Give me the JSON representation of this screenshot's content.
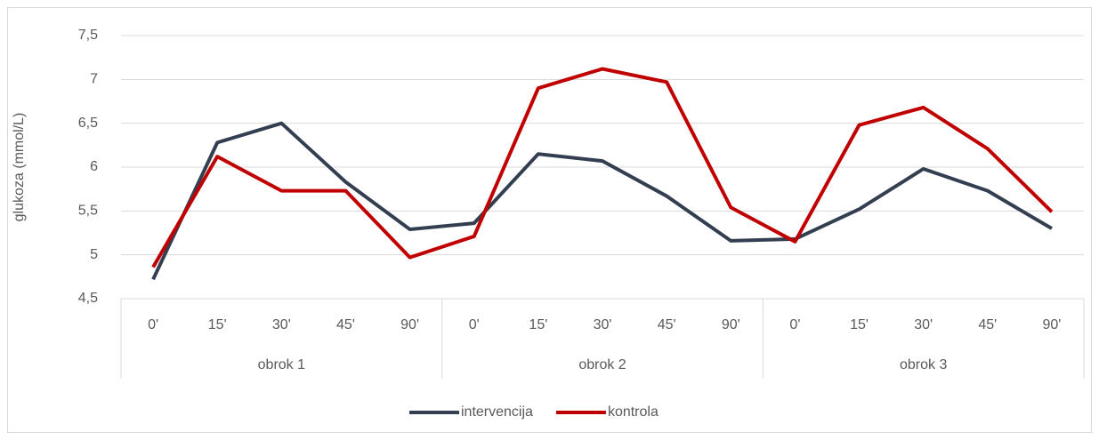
{
  "chart_data": {
    "type": "line",
    "y_label": "glukoza (mmol/L)",
    "categories": [
      "0'",
      "15'",
      "30'",
      "45'",
      "90'",
      "0'",
      "15'",
      "30'",
      "45'",
      "90'",
      "0'",
      "15'",
      "30'",
      "45'",
      "90'"
    ],
    "groups": [
      "obrok 1",
      "obrok 2",
      "obrok 3"
    ],
    "series": [
      {
        "name": "intervencija",
        "color": "#333f50",
        "values": [
          4.72,
          6.28,
          6.5,
          5.83,
          5.29,
          5.36,
          6.15,
          6.07,
          5.67,
          5.16,
          5.18,
          5.52,
          5.98,
          5.73,
          5.3
        ]
      },
      {
        "name": "kontrola",
        "color": "#c00000",
        "values": [
          4.86,
          6.12,
          5.73,
          5.73,
          4.97,
          5.21,
          6.9,
          7.12,
          6.97,
          5.54,
          5.15,
          6.48,
          6.68,
          6.21,
          5.49
        ]
      }
    ],
    "ylim": [
      4.5,
      7.5
    ],
    "yticks": [
      {
        "value": 4.5,
        "label": "4,5"
      },
      5,
      {
        "value": 5.5,
        "label": "5,5"
      },
      6,
      {
        "value": 6.5,
        "label": "6,5"
      },
      7,
      {
        "value": 7.5,
        "label": "7,5"
      }
    ],
    "grid": true,
    "legend": "bottom"
  }
}
